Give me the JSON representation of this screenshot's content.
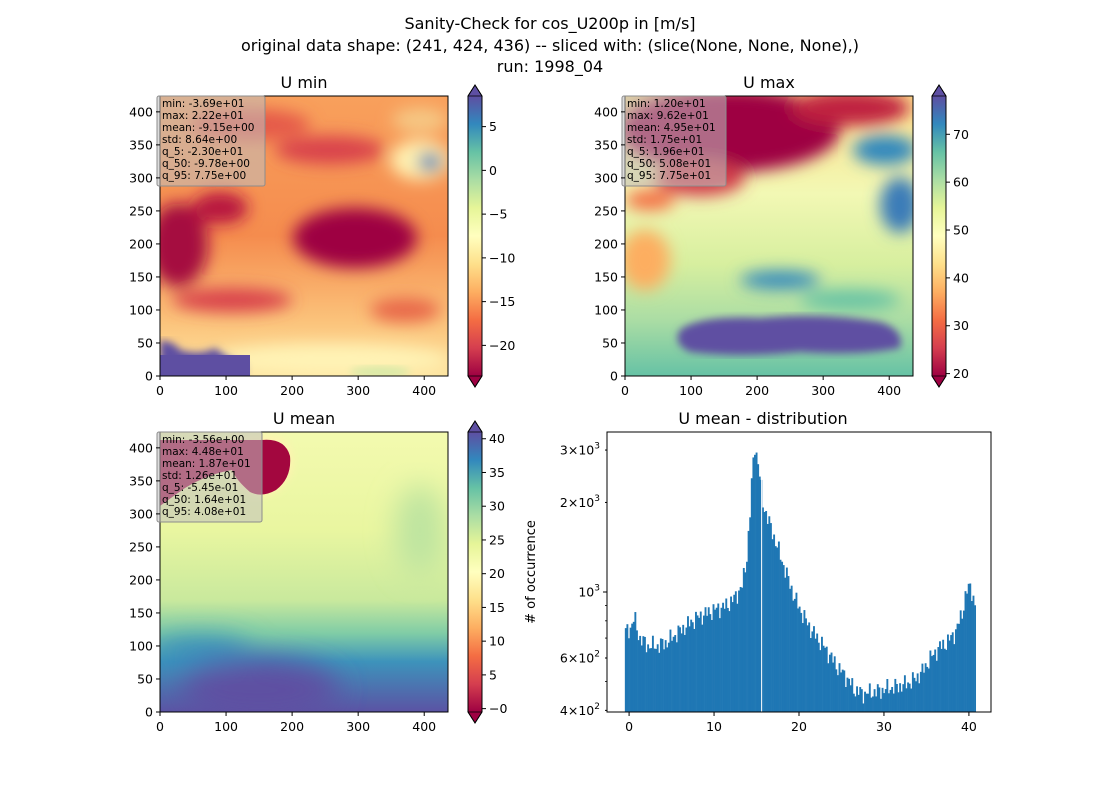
{
  "figure": {
    "suptitle": [
      "Sanity-Check for cos_U200p in [m/s]",
      "original data shape: (241, 424, 436) -- sliced with: (slice(None, None, None),)",
      "run: 1998_04"
    ]
  },
  "colors": {
    "colormap": "Spectral",
    "hist_bar": "#1f77b4",
    "stats_box": "#bfbfbf"
  },
  "chart_data": [
    {
      "type": "heatmap",
      "title": "U min",
      "colormap": "Spectral",
      "xlim": [
        0,
        436
      ],
      "ylim": [
        0,
        424
      ],
      "xticks": [
        0,
        100,
        200,
        300,
        400
      ],
      "yticks": [
        0,
        50,
        100,
        150,
        200,
        250,
        300,
        350,
        400
      ],
      "colorbar": {
        "range": [
          -23.5,
          8.5
        ],
        "ticks": [
          -20,
          -15,
          -10,
          -5,
          0,
          5
        ],
        "ticklabels": [
          "−20",
          "−15",
          "−10",
          "−5",
          "0",
          "5"
        ],
        "extend": "both"
      },
      "stats": [
        "min: -3.69e+01",
        "max: 2.22e+01",
        "mean: -9.15e+00",
        "std: 8.64e+00",
        "q_5: -2.30e+01",
        "q_50: -9.78e+00",
        "q_95: 7.75e+00"
      ]
    },
    {
      "type": "heatmap",
      "title": "U max",
      "colormap": "Spectral",
      "xlim": [
        0,
        436
      ],
      "ylim": [
        0,
        424
      ],
      "xticks": [
        0,
        100,
        200,
        300,
        400
      ],
      "yticks": [
        0,
        50,
        100,
        150,
        200,
        250,
        300,
        350,
        400
      ],
      "colorbar": {
        "range": [
          19.5,
          78
        ],
        "ticks": [
          20,
          30,
          40,
          50,
          60,
          70
        ],
        "ticklabels": [
          "20",
          "30",
          "40",
          "50",
          "60",
          "70"
        ],
        "extend": "both"
      },
      "stats": [
        "min: 1.20e+01",
        "max: 9.62e+01",
        "mean: 4.95e+01",
        "std: 1.75e+01",
        "q_5: 1.96e+01",
        "q_50: 5.08e+01",
        "q_95: 7.75e+01"
      ]
    },
    {
      "type": "heatmap",
      "title": "U mean",
      "colormap": "Spectral",
      "xlim": [
        0,
        436
      ],
      "ylim": [
        0,
        424
      ],
      "xticks": [
        0,
        100,
        200,
        300,
        400
      ],
      "yticks": [
        0,
        50,
        100,
        150,
        200,
        250,
        300,
        350,
        400
      ],
      "colorbar": {
        "range": [
          -0.5,
          41
        ],
        "ticks": [
          0,
          5,
          10,
          15,
          20,
          25,
          30,
          35,
          40
        ],
        "ticklabels": [
          "−0",
          "5",
          "10",
          "15",
          "20",
          "25",
          "30",
          "35",
          "40"
        ],
        "extend": "both"
      },
      "stats": [
        "min: -3.56e+00",
        "max: 4.48e+01",
        "mean: 1.87e+01",
        "std: 1.26e+01",
        "q_5: -5.45e-01",
        "q_50: 1.64e+01",
        "q_95: 4.08e+01"
      ]
    },
    {
      "type": "bar",
      "title": "U mean - distribution",
      "xlabel": "",
      "ylabel": "# of occurrence",
      "yscale": "log",
      "xlim": [
        -2.6,
        42.6
      ],
      "ylim": [
        395,
        3450
      ],
      "xticks": [
        0,
        10,
        20,
        30,
        40
      ],
      "yticks": [
        400,
        600,
        1000,
        2000,
        3000
      ],
      "yticklabels": [
        {
          "mant": "4",
          "exp": "2"
        },
        {
          "mant": "6",
          "exp": "2"
        },
        {
          "mant": "",
          "exp": "3"
        },
        {
          "mant": "2",
          "exp": "3"
        },
        {
          "mant": "3",
          "exp": "3"
        }
      ],
      "bin_range": [
        -0.5,
        40.8
      ],
      "profile": [
        [
          -0.5,
          730
        ],
        [
          0.2,
          760
        ],
        [
          0.6,
          820
        ],
        [
          1.2,
          700
        ],
        [
          2.2,
          660
        ],
        [
          3.5,
          660
        ],
        [
          4.5,
          680
        ],
        [
          6.0,
          740
        ],
        [
          8.0,
          820
        ],
        [
          10.0,
          870
        ],
        [
          11.5,
          900
        ],
        [
          12.5,
          960
        ],
        [
          13.3,
          1050
        ],
        [
          13.8,
          1250
        ],
        [
          14.2,
          1750
        ],
        [
          14.5,
          2500
        ],
        [
          14.8,
          3100
        ],
        [
          15.2,
          2700
        ],
        [
          15.7,
          2000
        ],
        [
          16.5,
          1700
        ],
        [
          17.5,
          1400
        ],
        [
          18.5,
          1150
        ],
        [
          19.5,
          950
        ],
        [
          20.5,
          830
        ],
        [
          21.5,
          740
        ],
        [
          22.5,
          680
        ],
        [
          23.5,
          620
        ],
        [
          24.5,
          560
        ],
        [
          25.5,
          520
        ],
        [
          26.5,
          470
        ],
        [
          27.5,
          455
        ],
        [
          28.5,
          460
        ],
        [
          29.5,
          465
        ],
        [
          30.5,
          475
        ],
        [
          31.5,
          480
        ],
        [
          32.5,
          490
        ],
        [
          33.5,
          505
        ],
        [
          34.5,
          540
        ],
        [
          35.5,
          600
        ],
        [
          36.5,
          650
        ],
        [
          37.5,
          680
        ],
        [
          38.5,
          740
        ],
        [
          39.2,
          850
        ],
        [
          39.7,
          1000
        ],
        [
          40.2,
          1050
        ],
        [
          40.8,
          870
        ]
      ],
      "white_gap_x": 15.6
    }
  ]
}
